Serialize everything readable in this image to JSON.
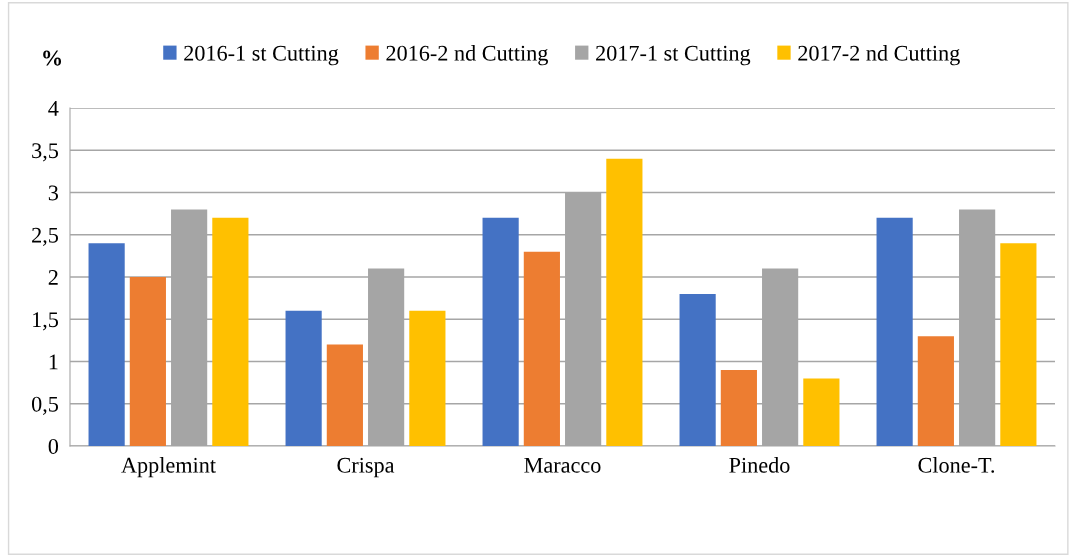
{
  "chart_data": {
    "type": "bar",
    "ylabel": "%",
    "categories": [
      "Applemint",
      "Crispa",
      "Maracco",
      "Pinedo",
      "Clone-T."
    ],
    "series": [
      {
        "name": "2016-1 st Cutting",
        "color": "#4472c4",
        "values": [
          2.4,
          1.6,
          2.7,
          1.8,
          2.7
        ]
      },
      {
        "name": "2016-2 nd Cutting",
        "color": "#ed7d31",
        "values": [
          2.0,
          1.2,
          2.3,
          0.9,
          1.3
        ]
      },
      {
        "name": "2017-1 st Cutting",
        "color": "#a5a5a5",
        "values": [
          2.8,
          2.1,
          3.0,
          2.1,
          2.8
        ]
      },
      {
        "name": "2017-2 nd Cutting",
        "color": "#ffc000",
        "values": [
          2.7,
          1.6,
          3.4,
          0.8,
          2.4
        ]
      }
    ],
    "ylim": [
      0,
      4
    ],
    "yticks": [
      0,
      {
        "value": 0.5,
        "label": "0,5"
      },
      1,
      {
        "value": 1.5,
        "label": "1,5"
      },
      2,
      {
        "value": 2.5,
        "label": "2,5"
      },
      3,
      {
        "value": 3.5,
        "label": "3,5"
      },
      4
    ],
    "grid": "y",
    "legend": "top"
  }
}
